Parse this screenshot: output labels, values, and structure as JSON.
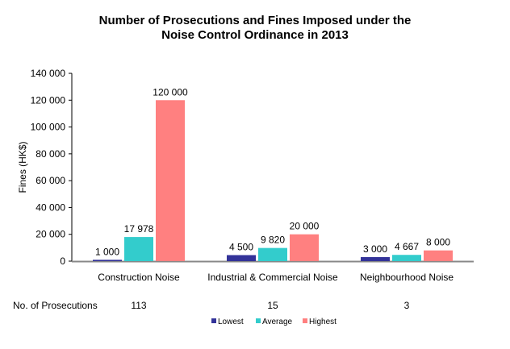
{
  "chart_data": {
    "type": "bar",
    "title": [
      "Number of Prosecutions and Fines Imposed under the",
      "Noise Control Ordinance in 2013"
    ],
    "ylabel": "Fines (HK$)",
    "xlabel": "",
    "ylim": [
      0,
      140000
    ],
    "yticks": [
      0,
      20000,
      40000,
      60000,
      80000,
      100000,
      120000,
      140000
    ],
    "ytick_labels": [
      "0",
      "20 000",
      "40 000",
      "60 000",
      "80 000",
      "100 000",
      "120 000",
      "140 000"
    ],
    "grid": false,
    "legend_position": "bottom",
    "categories": [
      "Construction Noise",
      "Industrial & Commercial Noise",
      "Neighbourhood Noise"
    ],
    "series": [
      {
        "name": "Lowest",
        "color": "#333399",
        "values": [
          1000,
          4500,
          3000
        ],
        "labels": [
          "1 000",
          "4 500",
          "3 000"
        ]
      },
      {
        "name": "Average",
        "color": "#33CCCC",
        "values": [
          17978,
          9820,
          4667
        ],
        "labels": [
          "17 978",
          "9 820",
          "4 667"
        ]
      },
      {
        "name": "Highest",
        "color": "#FF8080",
        "values": [
          120000,
          20000,
          8000
        ],
        "labels": [
          "120 000",
          "20 000",
          "8 000"
        ]
      }
    ],
    "table_row": {
      "label": "No. of Prosecutions",
      "values": [
        "113",
        "15",
        "3"
      ]
    }
  }
}
